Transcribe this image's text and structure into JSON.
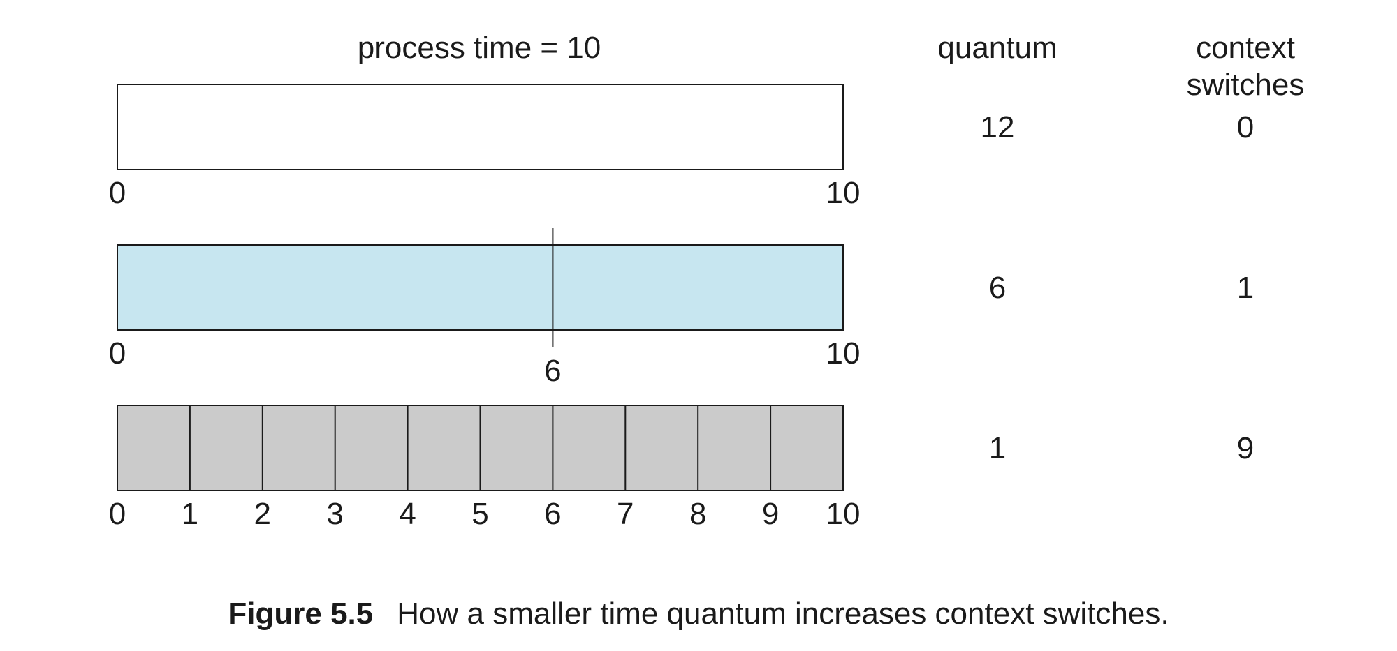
{
  "header": {
    "process_time_label": "process time = 10",
    "quantum_header": "quantum",
    "context_switches_header_line1": "context",
    "context_switches_header_line2": "switches"
  },
  "process_time": 10,
  "rows": [
    {
      "quantum": "12",
      "context_switches": "0",
      "fill_color": "#ffffff",
      "switch_points": [],
      "tick_labels": [
        "0",
        "10"
      ]
    },
    {
      "quantum": "6",
      "context_switches": "1",
      "fill_color": "#c7e6f0",
      "switch_points": [
        6
      ],
      "tick_labels": [
        "0",
        "6",
        "10"
      ]
    },
    {
      "quantum": "1",
      "context_switches": "9",
      "fill_color": "#cbcbcb",
      "switch_points": [
        1,
        2,
        3,
        4,
        5,
        6,
        7,
        8,
        9
      ],
      "tick_labels": [
        "0",
        "1",
        "2",
        "3",
        "4",
        "5",
        "6",
        "7",
        "8",
        "9",
        "10"
      ]
    }
  ],
  "caption": {
    "label": "Figure 5.5",
    "text": "How a smaller time quantum increases context switches."
  }
}
